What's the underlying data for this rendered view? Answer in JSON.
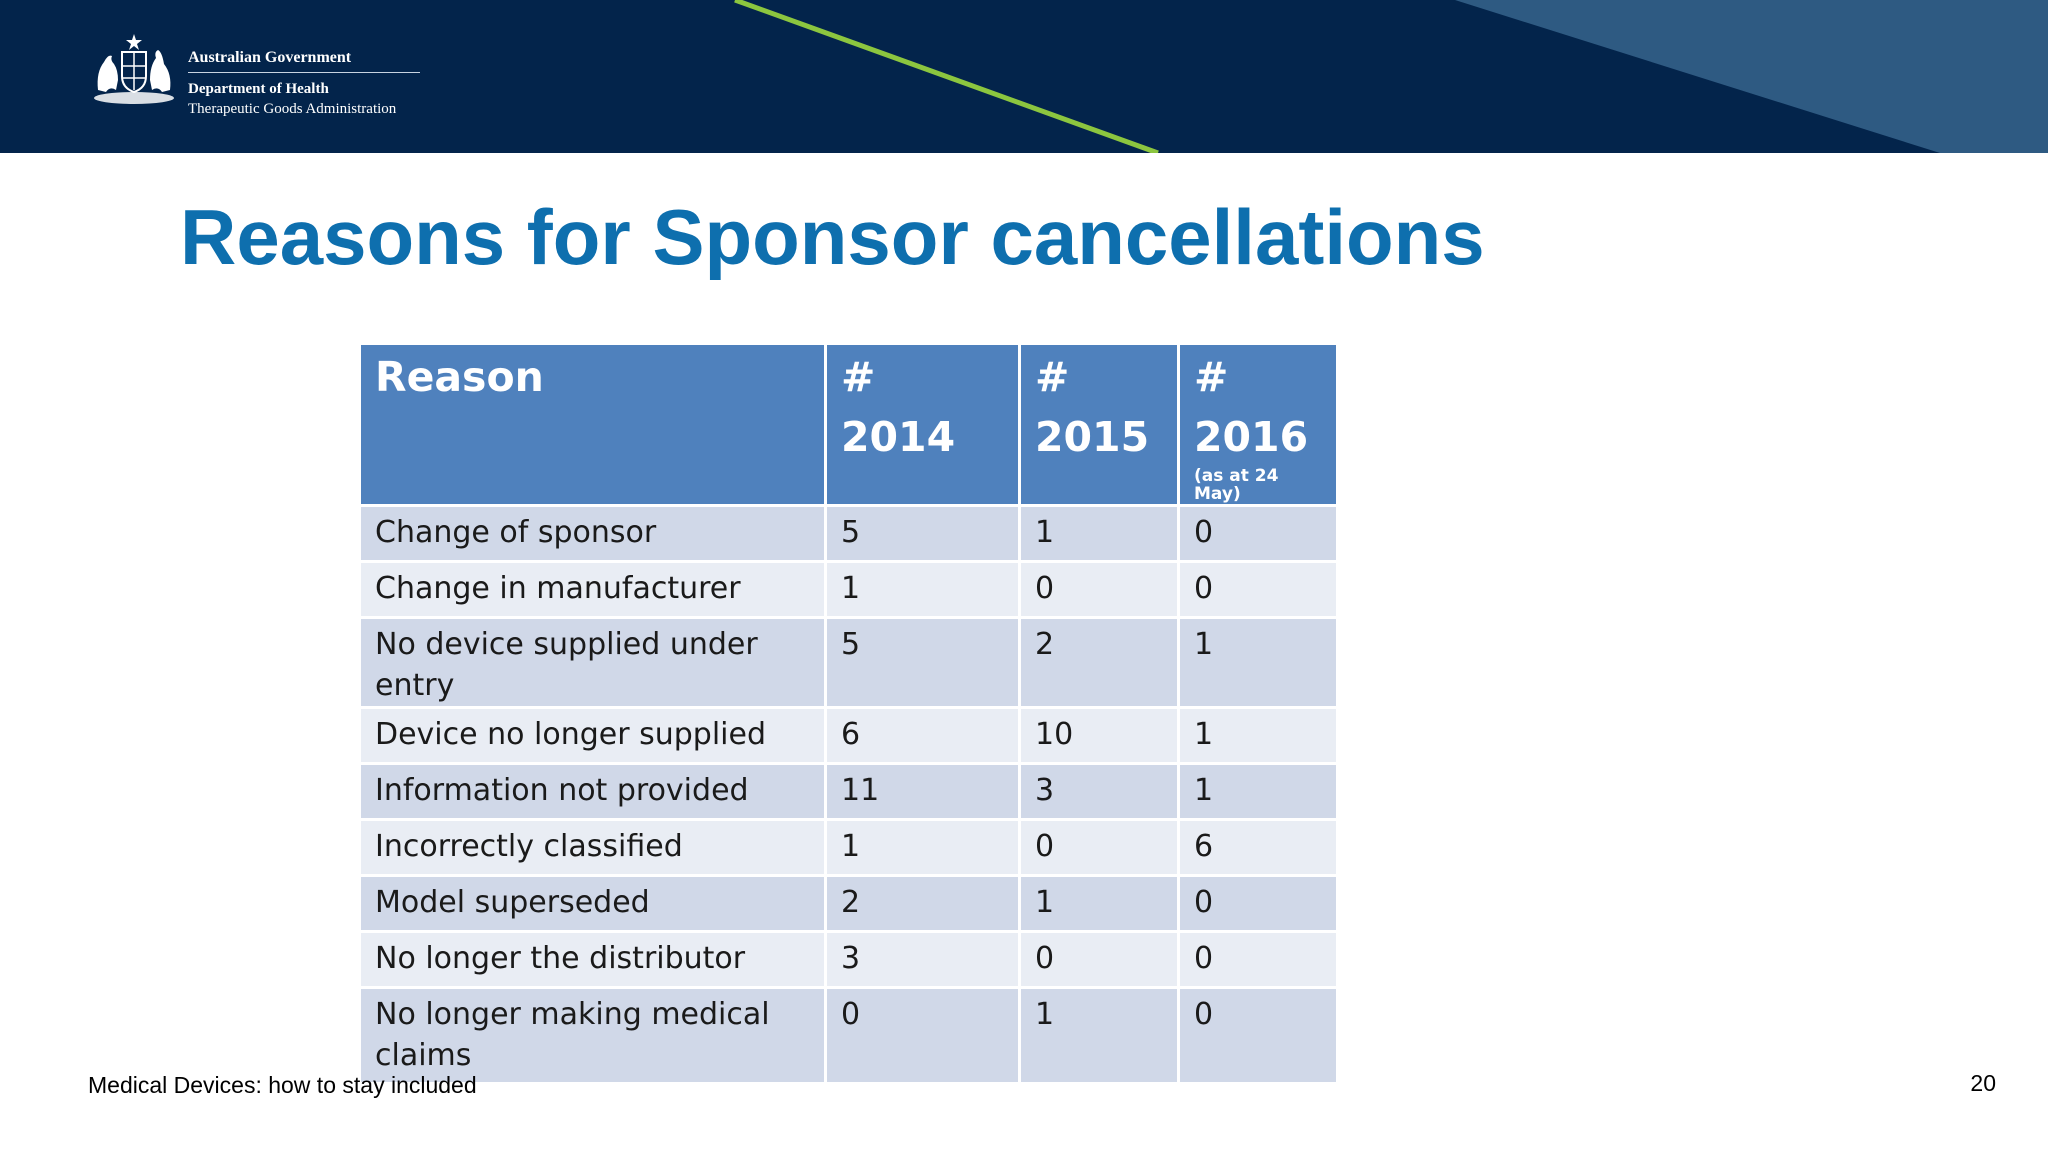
{
  "header": {
    "logo": {
      "government": "Australian Government",
      "department": "Department of Health",
      "agency": "Therapeutic Goods Administration"
    }
  },
  "slide": {
    "title": "Reasons for Sponsor cancellations"
  },
  "table": {
    "headers": [
      {
        "top": "Reason",
        "bottom": "",
        "note": ""
      },
      {
        "top": "#",
        "bottom": "2014",
        "note": ""
      },
      {
        "top": "#",
        "bottom": "2015",
        "note": ""
      },
      {
        "top": "#",
        "bottom": "2016",
        "note": "(as at 24 May)"
      }
    ],
    "rows": [
      {
        "reason": "Change of sponsor",
        "y2014": "5",
        "y2015": "1",
        "y2016": "0"
      },
      {
        "reason": "Change in manufacturer",
        "y2014": "1",
        "y2015": "0",
        "y2016": "0"
      },
      {
        "reason": "No device supplied under entry",
        "y2014": "5",
        "y2015": "2",
        "y2016": "1"
      },
      {
        "reason": "Device no longer supplied",
        "y2014": "6",
        "y2015": "10",
        "y2016": "1"
      },
      {
        "reason": "Information not provided",
        "y2014": "11",
        "y2015": "3",
        "y2016": "1"
      },
      {
        "reason": "Incorrectly classified",
        "y2014": "1",
        "y2015": "0",
        "y2016": "6"
      },
      {
        "reason": "Model superseded",
        "y2014": "2",
        "y2015": "1",
        "y2016": "0"
      },
      {
        "reason": "No longer the distributor",
        "y2014": "3",
        "y2015": "0",
        "y2016": "0"
      },
      {
        "reason": "No longer making medical claims",
        "y2014": "0",
        "y2015": "1",
        "y2016": "0"
      }
    ]
  },
  "footer": {
    "text": "Medical Devices: how to stay included",
    "page_number": "20"
  },
  "colors": {
    "banner": "#03244b",
    "banner_panel": "#2e5a82",
    "accent_line": "#8cc63f",
    "title": "#0e6fae",
    "header_cell": "#4f81bd",
    "row_odd": "#d0d8e8",
    "row_even": "#e9edf4"
  }
}
